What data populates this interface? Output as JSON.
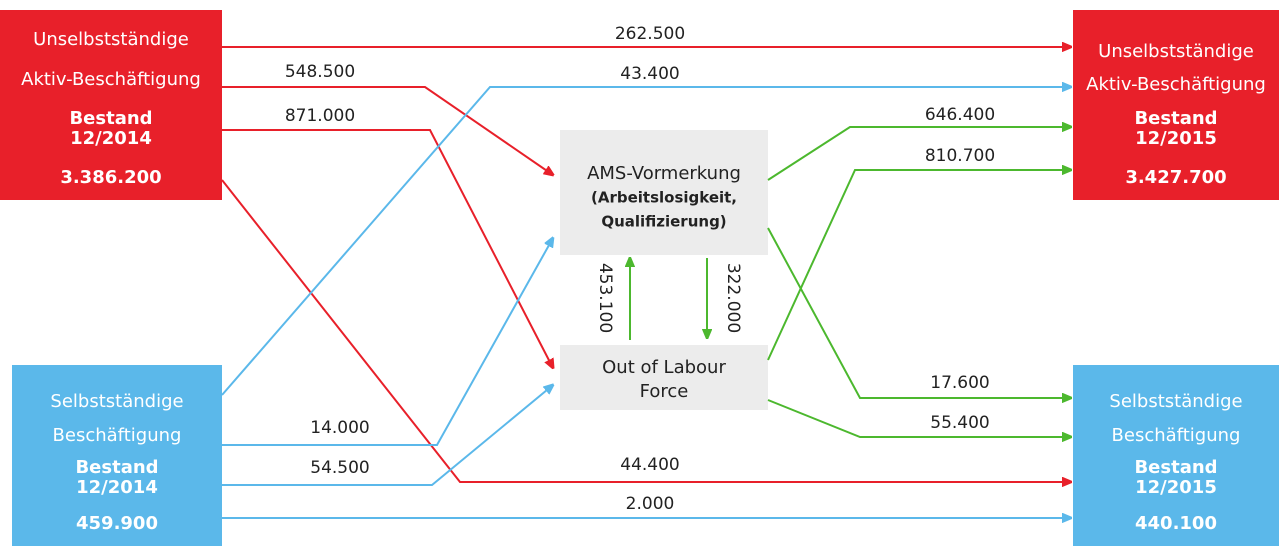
{
  "nodes": [
    {
      "title": [
        "Unselbstständige",
        "Aktiv-Beschäftigung"
      ],
      "stock": "Bestand",
      "period": "12/2014",
      "value": "3.386.200"
    },
    {
      "title": [
        "Selbstständige",
        "Beschäftigung"
      ],
      "stock": "Bestand",
      "period": "12/2014",
      "value": "459.900"
    },
    {
      "title": [
        "Unselbstständige",
        "Aktiv-Beschäftigung"
      ],
      "stock": "Bestand",
      "period": "12/2015",
      "value": "3.427.700"
    },
    {
      "title": [
        "Selbstständige",
        "Beschäftigung"
      ],
      "stock": "Bestand",
      "period": "12/2015",
      "value": "440.100"
    },
    {
      "title": [
        "AMS-Vormerkung"
      ],
      "subtitle": [
        "(Arbeitslosigkeit,",
        "Qualifizierung)"
      ]
    },
    {
      "title": [
        "Out of Labour",
        "Force"
      ]
    }
  ],
  "flows": [
    {
      "from": 0,
      "to": 2,
      "label": "262.500"
    },
    {
      "from": 0,
      "to": 4,
      "label": "548.500"
    },
    {
      "from": 0,
      "to": 5,
      "label": "871.000"
    },
    {
      "from": 0,
      "to": 3,
      "label": "44.400"
    },
    {
      "from": 1,
      "to": 2,
      "label": "43.400"
    },
    {
      "from": 1,
      "to": 4,
      "label": "14.000"
    },
    {
      "from": 1,
      "to": 5,
      "label": "54.500"
    },
    {
      "from": 1,
      "to": 3,
      "label": "2.000"
    },
    {
      "from": 4,
      "to": 2,
      "label": "646.400"
    },
    {
      "from": 5,
      "to": 2,
      "label": "810.700"
    },
    {
      "from": 4,
      "to": 3,
      "label": "17.600"
    },
    {
      "from": 5,
      "to": 3,
      "label": "55.400"
    },
    {
      "from": 5,
      "to": 4,
      "label": "453.100"
    },
    {
      "from": 4,
      "to": 5,
      "label": "322.000"
    }
  ]
}
